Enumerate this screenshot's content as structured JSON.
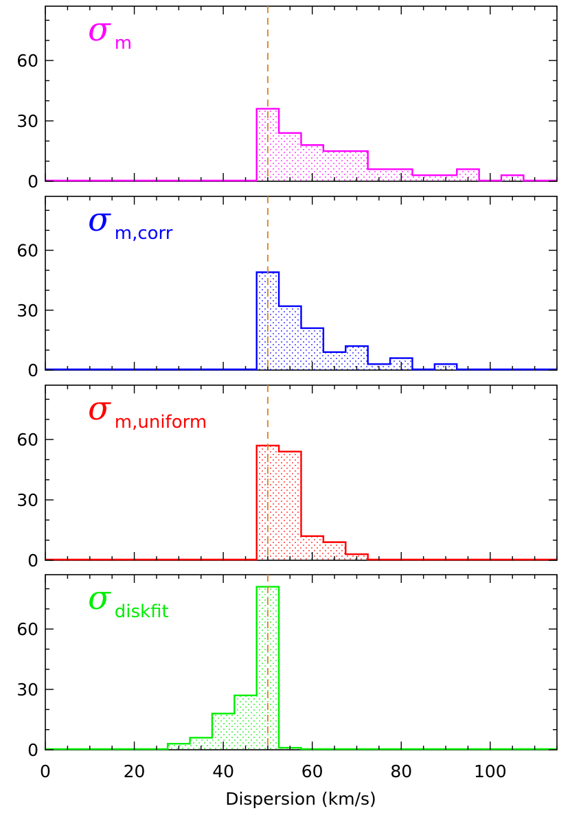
{
  "chart_data": {
    "type": "histogram",
    "xlabel": "Dispersion (km/s)",
    "xlim": [
      0,
      115
    ],
    "ylim": [
      0,
      87
    ],
    "xticks": [
      0,
      20,
      40,
      60,
      80,
      100
    ],
    "yticks": [
      0,
      30,
      60
    ],
    "bin_width": 5,
    "reference_line": {
      "x": 50,
      "style": "dashed",
      "color": "#e08a2a"
    },
    "panels": [
      {
        "label_symbol": "σ",
        "label_subscript": "m",
        "color": "#ff00ff",
        "bin_edges": [
          47.5,
          52.5,
          57.5,
          62.5,
          67.5,
          72.5,
          77.5,
          82.5,
          87.5,
          92.5,
          97.5,
          102.5,
          107.5
        ],
        "counts": [
          36,
          24,
          18,
          15,
          15,
          6,
          6,
          3,
          3,
          6,
          0,
          3
        ]
      },
      {
        "label_symbol": "σ",
        "label_subscript": "m,corr",
        "color": "#0000ff",
        "bin_edges": [
          47.5,
          52.5,
          57.5,
          62.5,
          67.5,
          72.5,
          77.5,
          82.5,
          87.5,
          92.5
        ],
        "counts": [
          49,
          32,
          21,
          9,
          12,
          3,
          6,
          0,
          3
        ]
      },
      {
        "label_symbol": "σ",
        "label_subscript": "m,uniform",
        "color": "#ff0000",
        "bin_edges": [
          47.5,
          52.5,
          57.5,
          62.5,
          67.5,
          72.5
        ],
        "counts": [
          57,
          54,
          12,
          9,
          3
        ]
      },
      {
        "label_symbol": "σ",
        "label_subscript": "diskfit",
        "color": "#00ee00",
        "bin_edges": [
          27.5,
          32.5,
          37.5,
          42.5,
          47.5,
          52.5,
          57.5
        ],
        "counts": [
          3,
          6,
          18,
          27,
          81,
          1
        ]
      }
    ]
  }
}
